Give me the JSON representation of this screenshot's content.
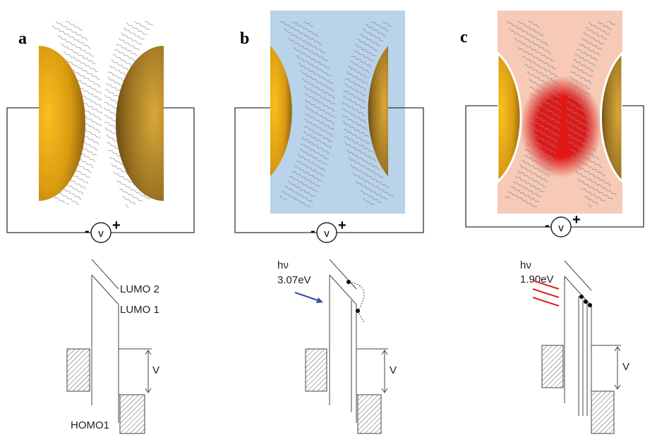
{
  "panels": [
    {
      "label": "a",
      "minus": "-",
      "meter": "v",
      "plus": "+",
      "lumo2": "LUMO 2",
      "lumo1": "LUMO 1",
      "homo": "HOMO1",
      "bias": "V"
    },
    {
      "label": "b",
      "minus": "-",
      "meter": "v",
      "plus": "+",
      "photon": "hν",
      "energy": "3.07eV",
      "bias": "V"
    },
    {
      "label": "c",
      "minus": "-",
      "meter": "v",
      "plus": "+",
      "photon": "hν",
      "energy": "1.90eV",
      "bias": "V"
    }
  ]
}
